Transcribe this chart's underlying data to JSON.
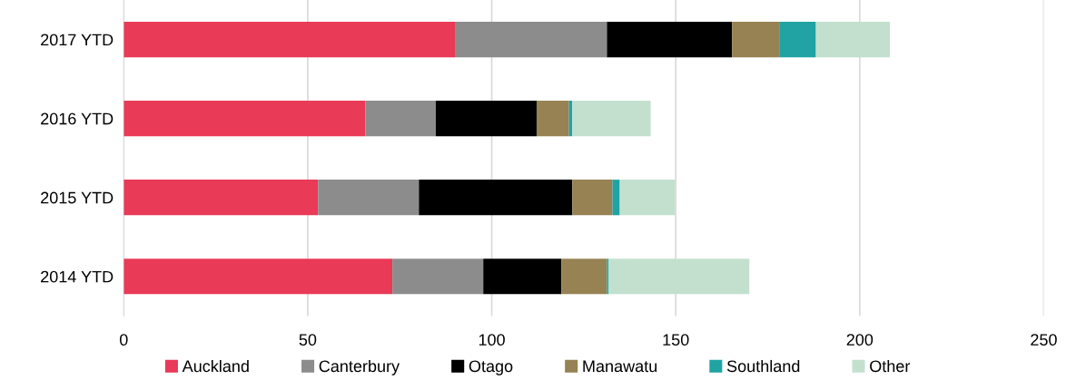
{
  "chart_data": {
    "type": "bar",
    "orientation": "horizontal",
    "stacked": true,
    "categories": [
      "2017 YTD",
      "2016 YTD",
      "2015 YTD",
      "2014 YTD"
    ],
    "series": [
      {
        "name": "Auckland",
        "color": "#e93a57",
        "values": [
          90,
          65.7,
          52.8,
          73
        ]
      },
      {
        "name": "Canterbury",
        "color": "#8c8c8c",
        "values": [
          41.3,
          19.1,
          27.4,
          24.7
        ]
      },
      {
        "name": "Otago",
        "color": "#000000",
        "values": [
          34,
          27.4,
          41.7,
          21.2
        ]
      },
      {
        "name": "Manawatu",
        "color": "#968253",
        "values": [
          13,
          8.8,
          10.9,
          12.4
        ]
      },
      {
        "name": "Southland",
        "color": "#21a3a3",
        "values": [
          9.8,
          0.9,
          2,
          0.5
        ]
      },
      {
        "name": "Other",
        "color": "#c3e0cf",
        "values": [
          20.1,
          21.3,
          15,
          38.2
        ]
      }
    ],
    "xlim": [
      0,
      250
    ],
    "xticks": [
      0,
      50,
      100,
      150,
      200,
      250
    ],
    "grid": "x",
    "legend": "bottom"
  }
}
